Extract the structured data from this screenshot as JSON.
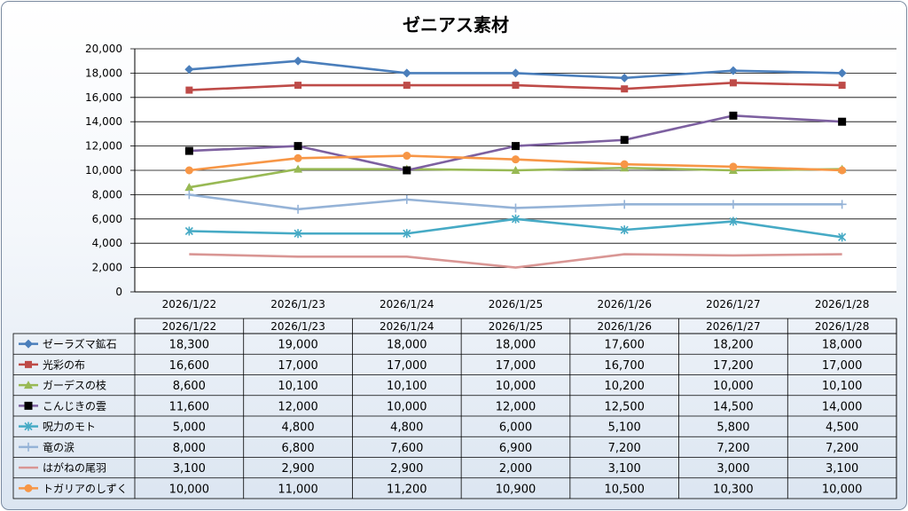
{
  "chart_data": {
    "type": "line",
    "title": "ゼニアス素材",
    "categories": [
      "2026/1/22",
      "2026/1/23",
      "2026/1/24",
      "2026/1/25",
      "2026/1/26",
      "2026/1/27",
      "2026/1/28"
    ],
    "ylim": [
      0,
      20000
    ],
    "yticks": [
      "0",
      "2,000",
      "4,000",
      "6,000",
      "8,000",
      "10,000",
      "12,000",
      "14,000",
      "16,000",
      "18,000",
      "20,000"
    ],
    "grid": true,
    "legend": "data-table",
    "series": [
      {
        "name": "ゼーラズマ鉱石",
        "color": "#4a7ebb",
        "marker": "diamond",
        "values": [
          18300,
          19000,
          18000,
          18000,
          17600,
          18200,
          18000
        ],
        "labels": [
          "18,300",
          "19,000",
          "18,000",
          "18,000",
          "17,600",
          "18,200",
          "18,000"
        ]
      },
      {
        "name": "光彩の布",
        "color": "#be4b48",
        "marker": "square",
        "values": [
          16600,
          17000,
          17000,
          17000,
          16700,
          17200,
          17000
        ],
        "labels": [
          "16,600",
          "17,000",
          "17,000",
          "17,000",
          "16,700",
          "17,200",
          "17,000"
        ]
      },
      {
        "name": "ガーデスの枝",
        "color": "#98b954",
        "marker": "triangle",
        "values": [
          8600,
          10100,
          10100,
          10000,
          10200,
          10000,
          10100
        ],
        "labels": [
          "8,600",
          "10,100",
          "10,100",
          "10,000",
          "10,200",
          "10,000",
          "10,100"
        ]
      },
      {
        "name": "こんじきの雲",
        "color": "#7d60a0",
        "marker": "square-black",
        "values": [
          11600,
          12000,
          10000,
          12000,
          12500,
          14500,
          14000
        ],
        "labels": [
          "11,600",
          "12,000",
          "10,000",
          "12,000",
          "12,500",
          "14,500",
          "14,000"
        ]
      },
      {
        "name": "呪力のモト",
        "color": "#46aac5",
        "marker": "asterisk",
        "values": [
          5000,
          4800,
          4800,
          6000,
          5100,
          5800,
          4500
        ],
        "labels": [
          "5,000",
          "4,800",
          "4,800",
          "6,000",
          "5,100",
          "5,800",
          "4,500"
        ]
      },
      {
        "name": "竜の涙",
        "color": "#95b3d7",
        "marker": "plus",
        "values": [
          8000,
          6800,
          7600,
          6900,
          7200,
          7200,
          7200
        ],
        "labels": [
          "8,000",
          "6,800",
          "7,600",
          "6,900",
          "7,200",
          "7,200",
          "7,200"
        ]
      },
      {
        "name": "はがねの尾羽",
        "color": "#d99694",
        "marker": "none",
        "values": [
          3100,
          2900,
          2900,
          2000,
          3100,
          3000,
          3100
        ],
        "labels": [
          "3,100",
          "2,900",
          "2,900",
          "2,000",
          "3,100",
          "3,000",
          "3,100"
        ]
      },
      {
        "name": "トガリアのしずく",
        "color": "#f79646",
        "marker": "circle",
        "values": [
          10000,
          11000,
          11200,
          10900,
          10500,
          10300,
          10000
        ],
        "labels": [
          "10,000",
          "11,000",
          "11,200",
          "10,900",
          "10,500",
          "10,300",
          "10,000"
        ]
      }
    ]
  }
}
